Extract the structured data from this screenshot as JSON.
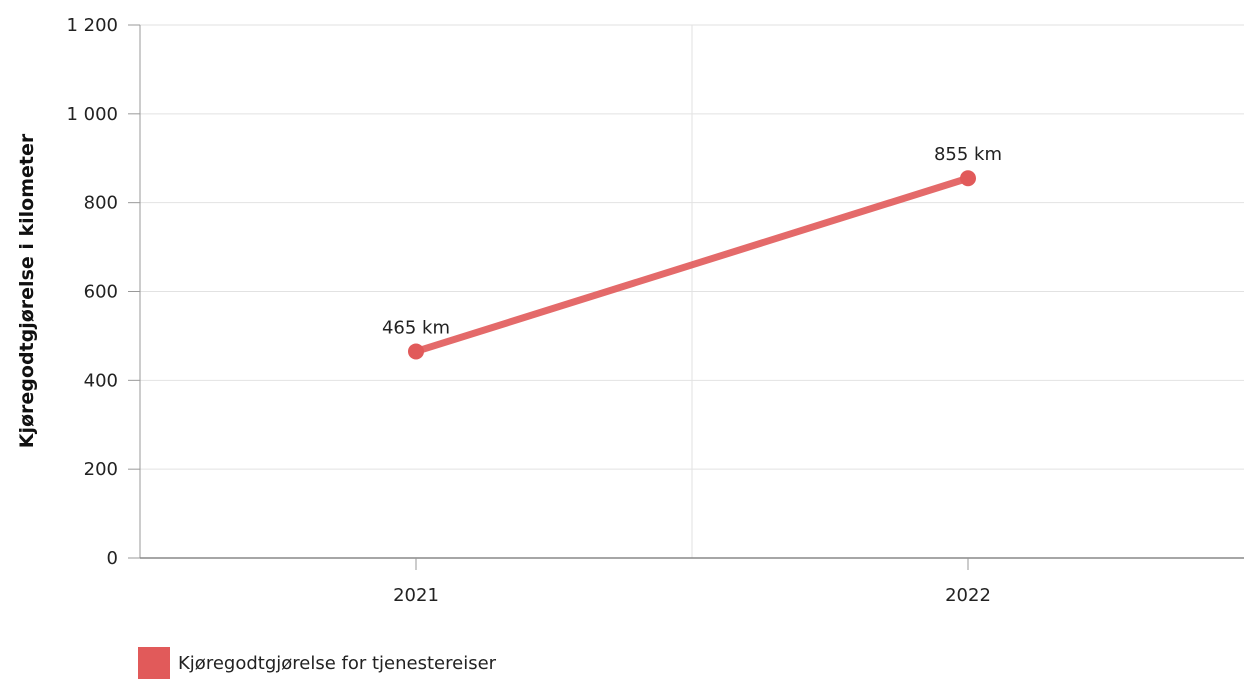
{
  "chart_data": {
    "type": "line",
    "ylabel": "Kjøregodtgjørelse i kilometer",
    "xlabel": "",
    "categories": [
      "2021",
      "2022"
    ],
    "ylim": [
      0,
      1200
    ],
    "yticks": [
      "0",
      "200",
      "400",
      "600",
      "800",
      "1 000",
      "1 200"
    ],
    "ytick_values": [
      0,
      200,
      400,
      600,
      800,
      1000,
      1200
    ],
    "series": [
      {
        "name": "Kjøregodtgjørelse for tjenestereiser",
        "values": [
          465,
          855
        ],
        "labels": [
          "465 km",
          "855 km"
        ],
        "color": "#e15a5a"
      }
    ],
    "grid": true,
    "legend_position": "bottom-left"
  }
}
